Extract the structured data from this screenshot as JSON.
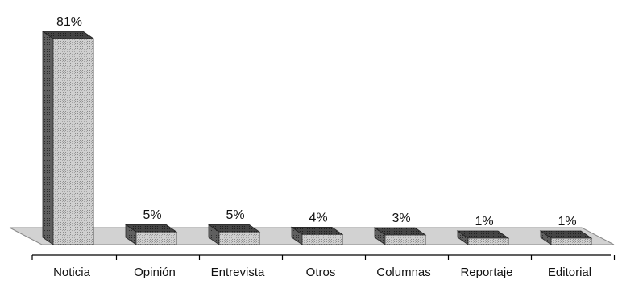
{
  "chart_data": {
    "type": "bar",
    "style": "3d",
    "categories": [
      "Noticia",
      "Opinión",
      "Entrevista",
      "Otros",
      "Columnas",
      "Reportaje",
      "Editorial"
    ],
    "values": [
      81,
      5,
      5,
      4,
      3,
      1,
      1
    ],
    "value_labels": [
      "81%",
      "5%",
      "5%",
      "4%",
      "3%",
      "1%",
      "1%"
    ],
    "ylim": [
      0,
      81
    ],
    "grid": false,
    "legend": "none",
    "colors": {
      "bar_front": "#c8c8c8",
      "bar_side": "#5a5a5a",
      "bar_top": "#3e3e3e",
      "floor": "#d2d2d2",
      "axis": "#000000"
    }
  }
}
